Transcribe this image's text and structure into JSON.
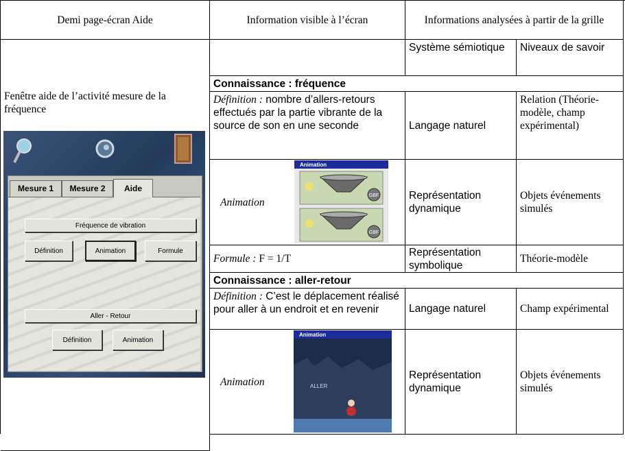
{
  "header": [
    "Demi page-écran Aide",
    "Information visible à l’écran",
    "Informations analysées à partir de la grille"
  ],
  "subheader": [
    "Système sémiotique",
    "Niveaux de savoir"
  ],
  "left_caption": "Fenêtre aide de l’activité mesure de la fréquence",
  "screenshot": {
    "tabs": [
      "Mesure 1",
      "Mesure 2",
      "Aide"
    ],
    "buttons": [
      "Fréquence de vibration",
      "Définition",
      "Animation",
      "Formule",
      "Aller - Retour",
      "Définition",
      "Animation"
    ]
  },
  "sections": [
    {
      "title": "Connaissance : fréquence",
      "rows": [
        {
          "label": "Définition :",
          "text": "nombre d’allers-retours effectués par la partie vibrante de la source de son en une seconde",
          "system": "Langage naturel",
          "level": "Relation (Théorie-modèle, champ expérimental)"
        },
        {
          "label": "Animation",
          "image_title": "Animation",
          "image_labels": [
            "GBF",
            "GBF"
          ],
          "system": "Représentation dynamique",
          "level": "Objets événements simulés"
        },
        {
          "label": "Formule :",
          "text": "F = 1/T",
          "system": "Représentation symbolique",
          "level": "Théorie-modèle"
        }
      ]
    },
    {
      "title": "Connaissance : aller-retour",
      "rows": [
        {
          "label": "Définition :",
          "text": "C’est le déplacement réalisé pour aller à un endroit et en revenir",
          "system": "Langage naturel",
          "level": "Champ expérimental"
        },
        {
          "label": "Animation",
          "image_title": "Animation",
          "image_labels": [
            "ALLER"
          ],
          "system": "Représentation dynamique",
          "level": "Objets événements simulés"
        }
      ]
    }
  ]
}
